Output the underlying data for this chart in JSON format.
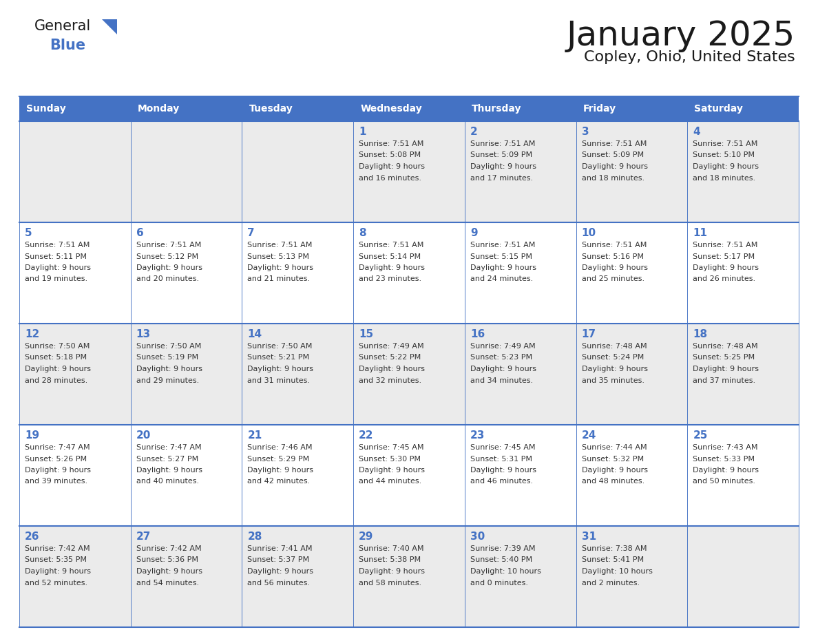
{
  "title": "January 2025",
  "subtitle": "Copley, Ohio, United States",
  "header_bg_color": "#4472C4",
  "header_text_color": "#FFFFFF",
  "cell_bg_color_row0": "#EBEBEB",
  "cell_bg_color_row1": "#FFFFFF",
  "cell_bg_color_row2": "#EBEBEB",
  "cell_bg_color_row3": "#FFFFFF",
  "cell_bg_color_row4": "#EBEBEB",
  "grid_line_color": "#4472C4",
  "day_names": [
    "Sunday",
    "Monday",
    "Tuesday",
    "Wednesday",
    "Thursday",
    "Friday",
    "Saturday"
  ],
  "title_color": "#1a1a1a",
  "subtitle_color": "#1a1a1a",
  "day_num_color": "#4472C4",
  "cell_text_color": "#333333",
  "days_data": [
    {
      "day": 1,
      "col": 3,
      "row": 0,
      "sunrise": "7:51 AM",
      "sunset": "5:08 PM",
      "daylight_a": "9 hours",
      "daylight_b": "and 16 minutes."
    },
    {
      "day": 2,
      "col": 4,
      "row": 0,
      "sunrise": "7:51 AM",
      "sunset": "5:09 PM",
      "daylight_a": "9 hours",
      "daylight_b": "and 17 minutes."
    },
    {
      "day": 3,
      "col": 5,
      "row": 0,
      "sunrise": "7:51 AM",
      "sunset": "5:09 PM",
      "daylight_a": "9 hours",
      "daylight_b": "and 18 minutes."
    },
    {
      "day": 4,
      "col": 6,
      "row": 0,
      "sunrise": "7:51 AM",
      "sunset": "5:10 PM",
      "daylight_a": "9 hours",
      "daylight_b": "and 18 minutes."
    },
    {
      "day": 5,
      "col": 0,
      "row": 1,
      "sunrise": "7:51 AM",
      "sunset": "5:11 PM",
      "daylight_a": "9 hours",
      "daylight_b": "and 19 minutes."
    },
    {
      "day": 6,
      "col": 1,
      "row": 1,
      "sunrise": "7:51 AM",
      "sunset": "5:12 PM",
      "daylight_a": "9 hours",
      "daylight_b": "and 20 minutes."
    },
    {
      "day": 7,
      "col": 2,
      "row": 1,
      "sunrise": "7:51 AM",
      "sunset": "5:13 PM",
      "daylight_a": "9 hours",
      "daylight_b": "and 21 minutes."
    },
    {
      "day": 8,
      "col": 3,
      "row": 1,
      "sunrise": "7:51 AM",
      "sunset": "5:14 PM",
      "daylight_a": "9 hours",
      "daylight_b": "and 23 minutes."
    },
    {
      "day": 9,
      "col": 4,
      "row": 1,
      "sunrise": "7:51 AM",
      "sunset": "5:15 PM",
      "daylight_a": "9 hours",
      "daylight_b": "and 24 minutes."
    },
    {
      "day": 10,
      "col": 5,
      "row": 1,
      "sunrise": "7:51 AM",
      "sunset": "5:16 PM",
      "daylight_a": "9 hours",
      "daylight_b": "and 25 minutes."
    },
    {
      "day": 11,
      "col": 6,
      "row": 1,
      "sunrise": "7:51 AM",
      "sunset": "5:17 PM",
      "daylight_a": "9 hours",
      "daylight_b": "and 26 minutes."
    },
    {
      "day": 12,
      "col": 0,
      "row": 2,
      "sunrise": "7:50 AM",
      "sunset": "5:18 PM",
      "daylight_a": "9 hours",
      "daylight_b": "and 28 minutes."
    },
    {
      "day": 13,
      "col": 1,
      "row": 2,
      "sunrise": "7:50 AM",
      "sunset": "5:19 PM",
      "daylight_a": "9 hours",
      "daylight_b": "and 29 minutes."
    },
    {
      "day": 14,
      "col": 2,
      "row": 2,
      "sunrise": "7:50 AM",
      "sunset": "5:21 PM",
      "daylight_a": "9 hours",
      "daylight_b": "and 31 minutes."
    },
    {
      "day": 15,
      "col": 3,
      "row": 2,
      "sunrise": "7:49 AM",
      "sunset": "5:22 PM",
      "daylight_a": "9 hours",
      "daylight_b": "and 32 minutes."
    },
    {
      "day": 16,
      "col": 4,
      "row": 2,
      "sunrise": "7:49 AM",
      "sunset": "5:23 PM",
      "daylight_a": "9 hours",
      "daylight_b": "and 34 minutes."
    },
    {
      "day": 17,
      "col": 5,
      "row": 2,
      "sunrise": "7:48 AM",
      "sunset": "5:24 PM",
      "daylight_a": "9 hours",
      "daylight_b": "and 35 minutes."
    },
    {
      "day": 18,
      "col": 6,
      "row": 2,
      "sunrise": "7:48 AM",
      "sunset": "5:25 PM",
      "daylight_a": "9 hours",
      "daylight_b": "and 37 minutes."
    },
    {
      "day": 19,
      "col": 0,
      "row": 3,
      "sunrise": "7:47 AM",
      "sunset": "5:26 PM",
      "daylight_a": "9 hours",
      "daylight_b": "and 39 minutes."
    },
    {
      "day": 20,
      "col": 1,
      "row": 3,
      "sunrise": "7:47 AM",
      "sunset": "5:27 PM",
      "daylight_a": "9 hours",
      "daylight_b": "and 40 minutes."
    },
    {
      "day": 21,
      "col": 2,
      "row": 3,
      "sunrise": "7:46 AM",
      "sunset": "5:29 PM",
      "daylight_a": "9 hours",
      "daylight_b": "and 42 minutes."
    },
    {
      "day": 22,
      "col": 3,
      "row": 3,
      "sunrise": "7:45 AM",
      "sunset": "5:30 PM",
      "daylight_a": "9 hours",
      "daylight_b": "and 44 minutes."
    },
    {
      "day": 23,
      "col": 4,
      "row": 3,
      "sunrise": "7:45 AM",
      "sunset": "5:31 PM",
      "daylight_a": "9 hours",
      "daylight_b": "and 46 minutes."
    },
    {
      "day": 24,
      "col": 5,
      "row": 3,
      "sunrise": "7:44 AM",
      "sunset": "5:32 PM",
      "daylight_a": "9 hours",
      "daylight_b": "and 48 minutes."
    },
    {
      "day": 25,
      "col": 6,
      "row": 3,
      "sunrise": "7:43 AM",
      "sunset": "5:33 PM",
      "daylight_a": "9 hours",
      "daylight_b": "and 50 minutes."
    },
    {
      "day": 26,
      "col": 0,
      "row": 4,
      "sunrise": "7:42 AM",
      "sunset": "5:35 PM",
      "daylight_a": "9 hours",
      "daylight_b": "and 52 minutes."
    },
    {
      "day": 27,
      "col": 1,
      "row": 4,
      "sunrise": "7:42 AM",
      "sunset": "5:36 PM",
      "daylight_a": "9 hours",
      "daylight_b": "and 54 minutes."
    },
    {
      "day": 28,
      "col": 2,
      "row": 4,
      "sunrise": "7:41 AM",
      "sunset": "5:37 PM",
      "daylight_a": "9 hours",
      "daylight_b": "and 56 minutes."
    },
    {
      "day": 29,
      "col": 3,
      "row": 4,
      "sunrise": "7:40 AM",
      "sunset": "5:38 PM",
      "daylight_a": "9 hours",
      "daylight_b": "and 58 minutes."
    },
    {
      "day": 30,
      "col": 4,
      "row": 4,
      "sunrise": "7:39 AM",
      "sunset": "5:40 PM",
      "daylight_a": "10 hours",
      "daylight_b": "and 0 minutes."
    },
    {
      "day": 31,
      "col": 5,
      "row": 4,
      "sunrise": "7:38 AM",
      "sunset": "5:41 PM",
      "daylight_a": "10 hours",
      "daylight_b": "and 2 minutes."
    }
  ],
  "row_colors": [
    "#EBEBEB",
    "#FFFFFF",
    "#EBEBEB",
    "#FFFFFF",
    "#EBEBEB"
  ]
}
